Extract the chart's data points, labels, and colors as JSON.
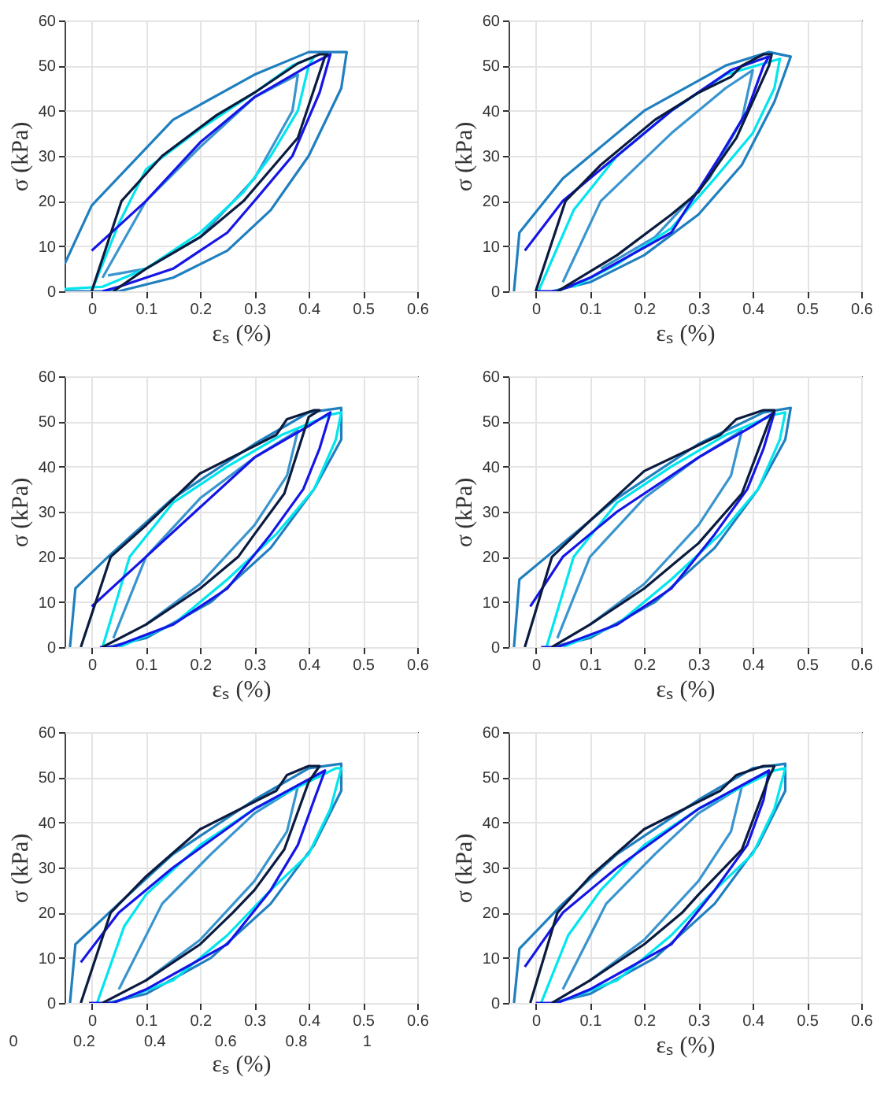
{
  "chart_data": [
    {
      "type": "line",
      "xlabel": "εₛ (%)",
      "ylabel": "σ (kPa)",
      "xlim": [
        -0.05,
        0.6
      ],
      "ylim": [
        0,
        60
      ],
      "xticks": [
        0,
        0.1,
        0.2,
        0.3,
        0.4,
        0.5,
        0.6
      ],
      "yticks": [
        0,
        10,
        20,
        30,
        40,
        50,
        60
      ],
      "grid": true,
      "series": [
        {
          "color": "#1f7fbf",
          "x": [
            -0.05,
            0,
            0.15,
            0.3,
            0.4,
            0.47,
            0.46,
            0.4,
            0.33,
            0.25,
            0.15,
            0.05,
            -0.05
          ],
          "values": [
            6,
            19,
            38,
            48,
            53,
            53,
            45,
            30,
            18,
            9,
            3,
            0,
            0
          ]
        },
        {
          "color": "#3a95cf",
          "x": [
            0.02,
            0.1,
            0.2,
            0.3,
            0.38,
            0.37,
            0.3,
            0.2,
            0.1,
            0.03
          ],
          "values": [
            3,
            20,
            32,
            43,
            48,
            40,
            25,
            12,
            5,
            3.5
          ]
        },
        {
          "color": "#00e5ee",
          "x": [
            0,
            0.05,
            0.1,
            0.2,
            0.3,
            0.37,
            0.41,
            0.4,
            0.38,
            0.33,
            0.28,
            0.2,
            0.1,
            0.02,
            -0.05
          ],
          "values": [
            0,
            15,
            27,
            36,
            44,
            50,
            52,
            50,
            40,
            30,
            22,
            13,
            5,
            1,
            0.5
          ]
        },
        {
          "color": "#1515e6",
          "x": [
            0,
            0.1,
            0.2,
            0.3,
            0.4,
            0.44,
            0.42,
            0.37,
            0.3,
            0.25,
            0.15,
            0.05,
            0.02
          ],
          "values": [
            9,
            20,
            33,
            43,
            50,
            52.5,
            44,
            30,
            20,
            13,
            5,
            1,
            0
          ]
        },
        {
          "color": "#0b1b3f",
          "x": [
            0,
            0.055,
            0.13,
            0.23,
            0.3,
            0.38,
            0.42,
            0.435,
            0.43,
            0.38,
            0.33,
            0.28,
            0.2,
            0.1,
            0.04
          ],
          "values": [
            0,
            20,
            30,
            39,
            44,
            50.5,
            52.5,
            52.5,
            52,
            34,
            27,
            20,
            12,
            5,
            0
          ]
        }
      ]
    },
    {
      "type": "line",
      "xlabel": "εₛ (%)",
      "ylabel": "σ (kPa)",
      "xlim": [
        -0.05,
        0.6
      ],
      "ylim": [
        0,
        60
      ],
      "xticks": [
        0,
        0.1,
        0.2,
        0.3,
        0.4,
        0.5,
        0.6
      ],
      "yticks": [
        0,
        10,
        20,
        30,
        40,
        50,
        60
      ],
      "grid": true,
      "series": [
        {
          "color": "#1f7fbf",
          "x": [
            -0.04,
            -0.03,
            0.05,
            0.2,
            0.35,
            0.43,
            0.47,
            0.44,
            0.38,
            0.3,
            0.2,
            0.1,
            0.03
          ],
          "values": [
            0,
            13,
            25,
            40,
            50,
            53,
            52,
            42,
            28,
            17,
            8,
            2,
            0
          ]
        },
        {
          "color": "#3a95cf",
          "x": [
            0.05,
            0.12,
            0.25,
            0.35,
            0.4,
            0.38,
            0.32,
            0.22,
            0.12
          ],
          "values": [
            2,
            20,
            35,
            45,
            49,
            38,
            25,
            12,
            5
          ]
        },
        {
          "color": "#00e5ee",
          "x": [
            0.005,
            0.07,
            0.15,
            0.25,
            0.35,
            0.45,
            0.44,
            0.4,
            0.33,
            0.25,
            0.15,
            0.07
          ],
          "values": [
            0,
            18,
            30,
            40,
            48,
            51.5,
            45,
            35,
            25,
            14,
            6,
            1
          ]
        },
        {
          "color": "#1515e6",
          "x": [
            -0.02,
            0.05,
            0.15,
            0.25,
            0.36,
            0.43,
            0.42,
            0.39,
            0.34,
            0.25,
            0.1,
            0.04,
            0
          ],
          "values": [
            9,
            20,
            30,
            40,
            49,
            52,
            50,
            40,
            30,
            13,
            3,
            0,
            0
          ]
        },
        {
          "color": "#0b1b3f",
          "x": [
            0,
            0.055,
            0.12,
            0.22,
            0.3,
            0.36,
            0.38,
            0.42,
            0.435,
            0.43,
            0.37,
            0.3,
            0.25,
            0.15,
            0.04
          ],
          "values": [
            0,
            20,
            28,
            38,
            44,
            47.5,
            50,
            52.5,
            52.5,
            50,
            34,
            22,
            17,
            8,
            0
          ]
        }
      ]
    },
    {
      "type": "line",
      "xlabel": "εₛ (%)",
      "ylabel": "σ (kPa)",
      "xlim": [
        -0.05,
        0.6
      ],
      "ylim": [
        0,
        60
      ],
      "xticks": [
        0,
        0.1,
        0.2,
        0.3,
        0.4,
        0.5,
        0.6
      ],
      "yticks": [
        0,
        10,
        20,
        30,
        40,
        50,
        60
      ],
      "grid": true,
      "series": [
        {
          "color": "#1f7fbf",
          "x": [
            -0.04,
            -0.03,
            0.03,
            0.15,
            0.3,
            0.4,
            0.46,
            0.46,
            0.41,
            0.33,
            0.22,
            0.1,
            0.03
          ],
          "values": [
            0,
            13,
            20,
            33,
            45,
            52,
            53,
            46,
            35,
            22,
            10,
            2,
            0
          ]
        },
        {
          "color": "#3a95cf",
          "x": [
            0.04,
            0.1,
            0.2,
            0.3,
            0.38,
            0.36,
            0.3,
            0.2,
            0.1
          ],
          "values": [
            2,
            20,
            33,
            42,
            48,
            38,
            27,
            14,
            5
          ]
        },
        {
          "color": "#00e5ee",
          "x": [
            0.02,
            0.07,
            0.15,
            0.25,
            0.35,
            0.44,
            0.46,
            0.45,
            0.41,
            0.34,
            0.25,
            0.15,
            0.05
          ],
          "values": [
            0,
            20,
            32,
            40,
            47,
            51.5,
            52,
            46,
            35,
            25,
            15,
            5,
            0
          ]
        },
        {
          "color": "#1515e6",
          "x": [
            0,
            0.1,
            0.2,
            0.3,
            0.4,
            0.44,
            0.42,
            0.39,
            0.33,
            0.25,
            0.15,
            0.04,
            0.015
          ],
          "values": [
            9,
            20,
            31,
            42,
            49,
            52,
            44,
            35,
            25,
            13,
            5,
            0,
            0
          ]
        },
        {
          "color": "#0b1b3f",
          "x": [
            -0.02,
            0.035,
            0.1,
            0.2,
            0.34,
            0.36,
            0.41,
            0.42,
            0.4,
            0.355,
            0.3,
            0.27,
            0.2,
            0.1,
            0.02
          ],
          "values": [
            0,
            20,
            27,
            38.5,
            47,
            50.5,
            52.5,
            52.5,
            51,
            34,
            25,
            20,
            13,
            5,
            0
          ]
        }
      ]
    },
    {
      "type": "line",
      "xlabel": "εₛ (%)",
      "ylabel": "σ (kPa)",
      "xlim": [
        -0.05,
        0.6
      ],
      "ylim": [
        0,
        60
      ],
      "xticks": [
        0,
        0.1,
        0.2,
        0.3,
        0.4,
        0.5,
        0.6
      ],
      "yticks": [
        0,
        10,
        20,
        30,
        40,
        50,
        60
      ],
      "grid": true,
      "series": [
        {
          "color": "#1f7fbf",
          "x": [
            -0.04,
            -0.03,
            0.04,
            0.15,
            0.3,
            0.42,
            0.47,
            0.46,
            0.41,
            0.33,
            0.22,
            0.1,
            0.03
          ],
          "values": [
            0,
            15,
            22,
            33,
            45,
            52,
            53,
            46,
            35,
            22,
            10,
            2,
            0
          ]
        },
        {
          "color": "#3a95cf",
          "x": [
            0.04,
            0.1,
            0.2,
            0.3,
            0.38,
            0.36,
            0.3,
            0.2,
            0.1
          ],
          "values": [
            2,
            20,
            33,
            42,
            48,
            38,
            27,
            14,
            5
          ]
        },
        {
          "color": "#00e5ee",
          "x": [
            0.02,
            0.07,
            0.15,
            0.25,
            0.35,
            0.44,
            0.46,
            0.45,
            0.41,
            0.34,
            0.25,
            0.15,
            0.05
          ],
          "values": [
            0,
            20,
            32,
            40,
            47,
            51.5,
            52,
            46,
            35,
            25,
            15,
            5,
            0
          ]
        },
        {
          "color": "#1515e6",
          "x": [
            -0.01,
            0.05,
            0.15,
            0.3,
            0.4,
            0.44,
            0.42,
            0.39,
            0.33,
            0.25,
            0.15,
            0.04,
            0.01
          ],
          "values": [
            9,
            20,
            30,
            42,
            49,
            52,
            44,
            35,
            25,
            13,
            5,
            0,
            0
          ]
        },
        {
          "color": "#0b1b3f",
          "x": [
            -0.02,
            0.03,
            0.1,
            0.2,
            0.34,
            0.37,
            0.42,
            0.44,
            0.43,
            0.38,
            0.3,
            0.27,
            0.2,
            0.1,
            0.03
          ],
          "values": [
            0,
            20,
            28,
            39,
            47,
            50.5,
            52.5,
            52.5,
            50,
            34,
            23,
            20,
            13,
            5,
            0
          ]
        }
      ]
    },
    {
      "type": "line",
      "xlabel": "εₛ (%)",
      "ylabel": "σ (kPa)",
      "xlim": [
        -0.05,
        0.6
      ],
      "ylim": [
        0,
        60
      ],
      "xticks": [
        0,
        0.1,
        0.2,
        0.3,
        0.4,
        0.5,
        0.6
      ],
      "yticks": [
        0,
        10,
        20,
        30,
        40,
        50,
        60
      ],
      "x2lim": [
        0,
        1.144
      ],
      "x2ticks": [
        0,
        0.2,
        0.4,
        0.6,
        0.8,
        1
      ],
      "grid": true,
      "series": [
        {
          "color": "#1f7fbf",
          "x": [
            -0.04,
            -0.03,
            0.05,
            0.15,
            0.3,
            0.4,
            0.46,
            0.46,
            0.41,
            0.33,
            0.22,
            0.1,
            0.03
          ],
          "values": [
            0,
            13,
            22,
            33,
            45,
            52,
            53,
            47,
            35,
            22,
            10,
            2,
            0
          ]
        },
        {
          "color": "#3a95cf",
          "x": [
            0.05,
            0.13,
            0.22,
            0.3,
            0.38,
            0.36,
            0.3,
            0.2,
            0.1
          ],
          "values": [
            3,
            22,
            33,
            42,
            48,
            38,
            27,
            14,
            5
          ]
        },
        {
          "color": "#00e5ee",
          "x": [
            0.01,
            0.06,
            0.1,
            0.2,
            0.3,
            0.45,
            0.46,
            0.44,
            0.4,
            0.33,
            0.25,
            0.15,
            0.05
          ],
          "values": [
            0,
            17,
            24,
            35,
            43,
            52,
            52,
            43,
            33,
            25,
            15,
            5,
            0.5
          ]
        },
        {
          "color": "#1515e6",
          "x": [
            -0.02,
            0.05,
            0.15,
            0.3,
            0.43,
            0.41,
            0.38,
            0.33,
            0.25,
            0.1,
            0.04,
            -0.005
          ],
          "values": [
            9,
            20,
            30,
            43,
            51.5,
            45,
            35,
            25,
            13,
            3,
            0,
            0
          ]
        },
        {
          "color": "#0b1b3f",
          "x": [
            -0.02,
            0.035,
            0.1,
            0.2,
            0.34,
            0.36,
            0.4,
            0.42,
            0.4,
            0.355,
            0.3,
            0.26,
            0.2,
            0.1,
            0.02
          ],
          "values": [
            0,
            20,
            28,
            38.5,
            47,
            50.5,
            52.5,
            52.5,
            49,
            34,
            25,
            20,
            13,
            5,
            0
          ]
        }
      ]
    },
    {
      "type": "line",
      "xlabel": "εₛ (%)",
      "ylabel": "σ (kPa)",
      "xlim": [
        -0.05,
        0.6
      ],
      "ylim": [
        0,
        60
      ],
      "xticks": [
        0,
        0.1,
        0.2,
        0.3,
        0.4,
        0.5,
        0.6
      ],
      "yticks": [
        0,
        10,
        20,
        30,
        40,
        50,
        60
      ],
      "grid": true,
      "series": [
        {
          "color": "#1f7fbf",
          "x": [
            -0.04,
            -0.03,
            0.05,
            0.15,
            0.3,
            0.4,
            0.46,
            0.46,
            0.41,
            0.33,
            0.22,
            0.1,
            0.03
          ],
          "values": [
            0,
            12,
            22,
            33,
            45,
            52,
            53,
            47,
            35,
            22,
            10,
            2,
            0
          ]
        },
        {
          "color": "#3a95cf",
          "x": [
            0.05,
            0.13,
            0.22,
            0.3,
            0.38,
            0.36,
            0.3,
            0.2,
            0.1
          ],
          "values": [
            3,
            22,
            33,
            42,
            48,
            38,
            27,
            14,
            5
          ]
        },
        {
          "color": "#00e5ee",
          "x": [
            0.01,
            0.06,
            0.12,
            0.2,
            0.3,
            0.44,
            0.46,
            0.44,
            0.4,
            0.33,
            0.25,
            0.15,
            0.05
          ],
          "values": [
            0,
            15,
            25,
            35,
            43,
            51.5,
            52,
            43,
            33,
            25,
            15,
            5,
            0.5
          ]
        },
        {
          "color": "#1515e6",
          "x": [
            -0.02,
            0.05,
            0.15,
            0.3,
            0.43,
            0.42,
            0.39,
            0.33,
            0.25,
            0.1,
            0.04,
            0
          ],
          "values": [
            8,
            20,
            30,
            43,
            51.5,
            45,
            35,
            25,
            13,
            3,
            0,
            0
          ]
        },
        {
          "color": "#0b1b3f",
          "x": [
            -0.01,
            0.04,
            0.1,
            0.2,
            0.34,
            0.37,
            0.42,
            0.44,
            0.43,
            0.38,
            0.3,
            0.27,
            0.2,
            0.1,
            0.03
          ],
          "values": [
            0,
            20,
            28,
            38.5,
            47,
            50.5,
            52.5,
            52.5,
            50,
            34,
            24,
            20,
            13,
            5,
            0
          ]
        }
      ]
    }
  ]
}
